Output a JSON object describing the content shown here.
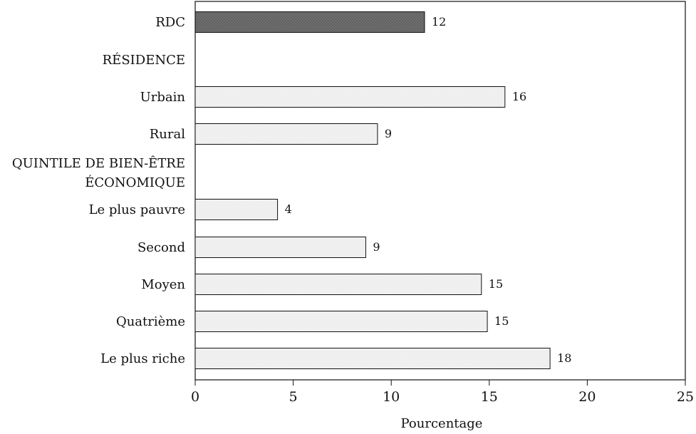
{
  "chart_data": {
    "type": "bar",
    "orientation": "horizontal",
    "rows": [
      {
        "label": "RDC",
        "lines": [
          "RDC"
        ],
        "value": 12,
        "kind": "total"
      },
      {
        "label": "RÉSIDENCE",
        "lines": [
          "RÉSIDENCE"
        ],
        "value": null,
        "kind": "header"
      },
      {
        "label": "Urbain",
        "lines": [
          "Urbain"
        ],
        "value": 16,
        "kind": "bar"
      },
      {
        "label": "Rural",
        "lines": [
          "Rural"
        ],
        "value": 9,
        "kind": "bar"
      },
      {
        "label": "QUINTILE DE BIEN-ÊTRE ÉCONOMIQUE",
        "lines": [
          "QUINTILE DE BIEN-ÊTRE",
          "ÉCONOMIQUE"
        ],
        "value": null,
        "kind": "header"
      },
      {
        "label": "Le plus pauvre",
        "lines": [
          "Le plus pauvre"
        ],
        "value": 4,
        "kind": "bar"
      },
      {
        "label": "Second",
        "lines": [
          "Second"
        ],
        "value": 9,
        "kind": "bar"
      },
      {
        "label": "Moyen",
        "lines": [
          "Moyen"
        ],
        "value": 15,
        "kind": "bar"
      },
      {
        "label": "Quatrième",
        "lines": [
          "Quatrième"
        ],
        "value": 15,
        "kind": "bar"
      },
      {
        "label": "Le plus riche",
        "lines": [
          "Le plus riche"
        ],
        "value": 18,
        "kind": "bar"
      }
    ],
    "bar_values": [
      11.7,
      15.8,
      9.3,
      4.2,
      8.7,
      14.6,
      14.9,
      18.1
    ],
    "xlabel": "Pourcentage",
    "ylabel": "",
    "xlim": [
      0,
      25
    ],
    "xticks": [
      0,
      5,
      10,
      15,
      20,
      25
    ],
    "grid": false,
    "legend": "none",
    "colors": {
      "total_bar": "#6f6f6f",
      "group_bar": "#f2f2f2",
      "outline": "#111111",
      "text": "#111111"
    }
  }
}
